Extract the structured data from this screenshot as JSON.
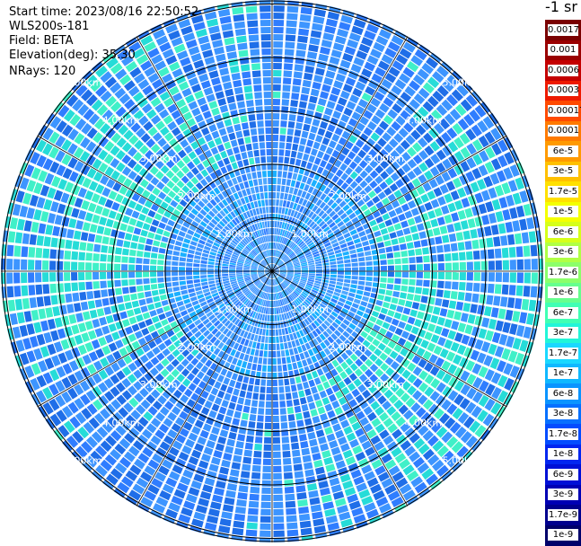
{
  "info": {
    "start_time": "Start time: 2023/08/16 22:50:52",
    "instrument": "WLS200s-181",
    "field": "Field: BETA",
    "elevation": "Elevation(deg): 35.30",
    "nrays": "NRays: 120"
  },
  "colorbar": {
    "unit": "-1 sr",
    "labels": [
      "0.0017",
      "0.001",
      "0.0006",
      "0.0003",
      "0.00017",
      "0.0001",
      "6e-5",
      "3e-5",
      "1.7e-5",
      "1e-5",
      "6e-6",
      "3e-6",
      "1.7e-6",
      "1e-6",
      "6e-7",
      "3e-7",
      "1.7e-7",
      "1e-7",
      "6e-8",
      "3e-8",
      "1.7e-8",
      "1e-8",
      "6e-9",
      "3e-9",
      "1.7e-9",
      "1e-9"
    ],
    "colors": [
      "#7a0000",
      "#9a0000",
      "#c40000",
      "#ee1a00",
      "#ff4a00",
      "#ff7a00",
      "#ff9a00",
      "#ffc000",
      "#ffe000",
      "#f4ff00",
      "#d6ff1a",
      "#b0ff45",
      "#8cff6a",
      "#66ff8e",
      "#40ffb4",
      "#22f5d8",
      "#1ad8ff",
      "#10b8ff",
      "#0a94ff",
      "#0670ff",
      "#034cff",
      "#0226f0",
      "#0010d6",
      "#0000b4",
      "#00008e",
      "#00006a"
    ]
  },
  "chart_data": {
    "type": "heatmap",
    "title": "",
    "plot": "polar PPI (plan position indicator)",
    "range_ring_labels": [
      "1.00km",
      "2.00km",
      "3.00km",
      "4.00km",
      "5.00km"
    ],
    "range_rings_km": [
      1,
      2,
      3,
      4,
      5
    ],
    "radial_spokes_deg": [
      0,
      30,
      60,
      90,
      120,
      150,
      180,
      210,
      240,
      270,
      300,
      330
    ],
    "n_rays": 120,
    "field": "BETA",
    "elevation_deg": 35.3,
    "value_scale": "log",
    "value_range": [
      1e-09,
      0.0017
    ],
    "dominant_values": "mostly 6e-8 to 3e-7 (cyan/blue), patches of 1.7e-7 to 3e-7 (green-cyan)"
  }
}
